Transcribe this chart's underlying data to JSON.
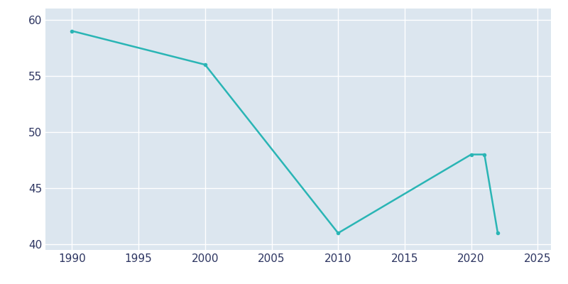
{
  "years": [
    1990,
    2000,
    2010,
    2020,
    2021,
    2022
  ],
  "population": [
    59,
    56,
    41,
    48,
    48,
    41
  ],
  "line_color": "#2ab5b5",
  "marker_color": "#2ab5b5",
  "background_color": "#e0e8f0",
  "plot_background": "#dce6ef",
  "grid_color": "#ffffff",
  "outer_background": "#ffffff",
  "xlim": [
    1988,
    2026
  ],
  "ylim": [
    39.5,
    61
  ],
  "yticks": [
    40,
    45,
    50,
    55,
    60
  ],
  "xticks": [
    1990,
    1995,
    2000,
    2005,
    2010,
    2015,
    2020,
    2025
  ],
  "linewidth": 1.8,
  "marker_size": 4,
  "tick_labelsize": 11,
  "tick_color": "#2d3561"
}
